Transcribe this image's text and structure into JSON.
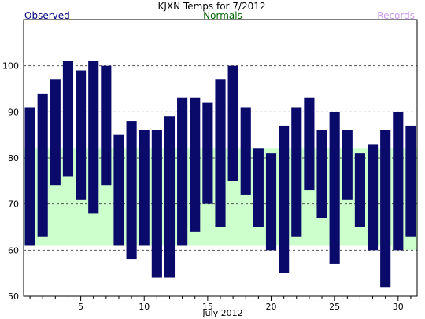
{
  "chart_data": {
    "type": "bar",
    "title": "KJXN Temps for 7/2012",
    "xlabel": "July 2012",
    "legend": {
      "observed": "Observed",
      "normals": "Normals",
      "records": "Records"
    },
    "colors": {
      "observed": "#0a0a6b",
      "observed_label": "#000080",
      "normals_fill": "#ccffcc",
      "normals_label": "#006400",
      "records_label": "#cc99ee",
      "grid": "#555555"
    },
    "ylim": [
      50,
      110
    ],
    "yticks": [
      50,
      60,
      70,
      80,
      90,
      100
    ],
    "xticks": [
      5,
      10,
      15,
      20,
      25,
      30
    ],
    "grid": "dashed-horizontal",
    "days": [
      1,
      2,
      3,
      4,
      5,
      6,
      7,
      8,
      9,
      10,
      11,
      12,
      13,
      14,
      15,
      16,
      17,
      18,
      19,
      20,
      21,
      22,
      23,
      24,
      25,
      26,
      27,
      28,
      29,
      30,
      31
    ],
    "observed_high": [
      91,
      94,
      97,
      101,
      99,
      101,
      100,
      85,
      88,
      86,
      86,
      89,
      93,
      93,
      92,
      97,
      100,
      91,
      82,
      81,
      87,
      91,
      93,
      86,
      90,
      86,
      81,
      83,
      86,
      90,
      87
    ],
    "observed_low": [
      61,
      63,
      74,
      76,
      71,
      68,
      74,
      61,
      58,
      61,
      54,
      54,
      61,
      64,
      70,
      65,
      75,
      72,
      65,
      60,
      55,
      63,
      73,
      67,
      57,
      71,
      65,
      60,
      52,
      60,
      63
    ],
    "normal_high": [
      82,
      82,
      82,
      82,
      82,
      82,
      82,
      82,
      82,
      82,
      82,
      82,
      82,
      82,
      82,
      82,
      82,
      82,
      82,
      82,
      82,
      82,
      82,
      82,
      82,
      82,
      82,
      82,
      82,
      82,
      82
    ],
    "normal_low": [
      61,
      61,
      61,
      61,
      61,
      61,
      61,
      61,
      61,
      61,
      61,
      61,
      61,
      61,
      61,
      61,
      61,
      61,
      61,
      61,
      61,
      61,
      61,
      61,
      61,
      61,
      61,
      61,
      61,
      60,
      60
    ]
  }
}
